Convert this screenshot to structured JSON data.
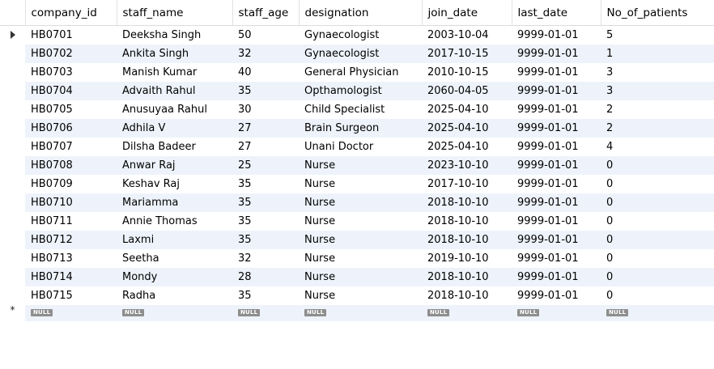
{
  "result_grid": {
    "columns": [
      "company_id",
      "staff_name",
      "staff_age",
      "designation",
      "join_date",
      "last_date",
      "No_of_patients"
    ],
    "rows": [
      [
        "HB0701",
        "Deeksha Singh",
        "50",
        "Gynaecologist",
        "2003-10-04",
        "9999-01-01",
        "5"
      ],
      [
        "HB0702",
        "Ankita Singh",
        "32",
        "Gynaecologist",
        "2017-10-15",
        "9999-01-01",
        "1"
      ],
      [
        "HB0703",
        "Manish Kumar",
        "40",
        "General Physician",
        "2010-10-15",
        "9999-01-01",
        "3"
      ],
      [
        "HB0704",
        "Advaith Rahul",
        "35",
        "Opthamologist",
        "2060-04-05",
        "9999-01-01",
        "3"
      ],
      [
        "HB0705",
        "Anusuyaa Rahul",
        "30",
        "Child Specialist",
        "2025-04-10",
        "9999-01-01",
        "2"
      ],
      [
        "HB0706",
        "Adhila V",
        "27",
        "Brain Surgeon",
        "2025-04-10",
        "9999-01-01",
        "2"
      ],
      [
        "HB0707",
        "Dilsha Badeer",
        "27",
        "Unani Doctor",
        "2025-04-10",
        "9999-01-01",
        "4"
      ],
      [
        "HB0708",
        "Anwar Raj",
        "25",
        "Nurse",
        "2023-10-10",
        "9999-01-01",
        "0"
      ],
      [
        "HB0709",
        "Keshav Raj",
        "35",
        "Nurse",
        "2017-10-10",
        "9999-01-01",
        "0"
      ],
      [
        "HB0710",
        "Mariamma",
        "35",
        "Nurse",
        "2018-10-10",
        "9999-01-01",
        "0"
      ],
      [
        "HB0711",
        "Annie Thomas",
        "35",
        "Nurse",
        "2018-10-10",
        "9999-01-01",
        "0"
      ],
      [
        "HB0712",
        "Laxmi",
        "35",
        "Nurse",
        "2018-10-10",
        "9999-01-01",
        "0"
      ],
      [
        "HB0713",
        "Seetha",
        "32",
        "Nurse",
        "2019-10-10",
        "9999-01-01",
        "0"
      ],
      [
        "HB0714",
        "Mondy",
        "28",
        "Nurse",
        "2018-10-10",
        "9999-01-01",
        "0"
      ],
      [
        "HB0715",
        "Radha",
        "35",
        "Nurse",
        "2018-10-10",
        "9999-01-01",
        "0"
      ]
    ],
    "null_label": "NULL",
    "current_row_icon": "arrow-right-icon",
    "new_row_icon": "asterisk-icon",
    "new_row_symbol": "*"
  }
}
